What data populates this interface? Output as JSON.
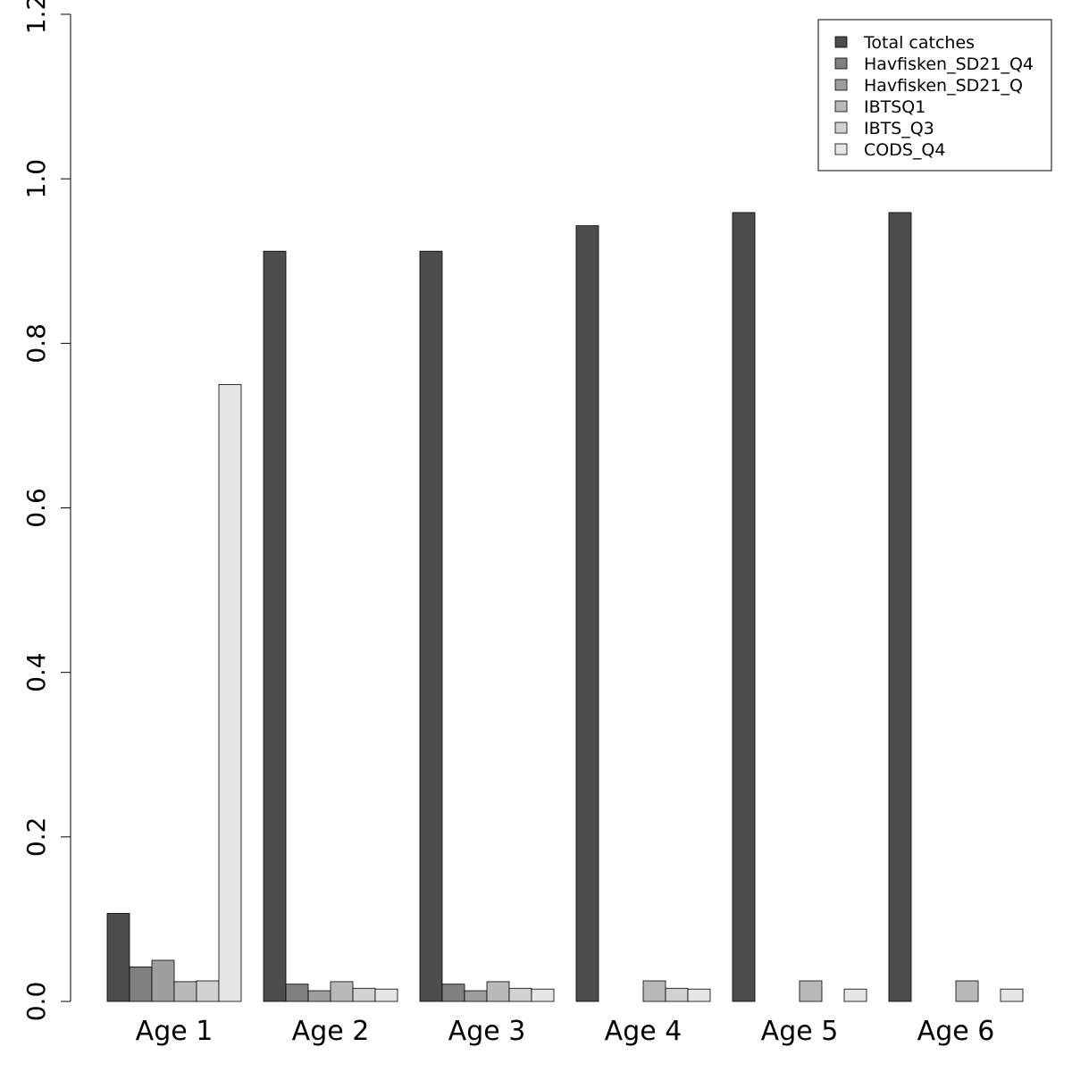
{
  "chart_data": {
    "type": "bar",
    "categories": [
      "Age 1",
      "Age 2",
      "Age 3",
      "Age 4",
      "Age 5",
      "Age 6"
    ],
    "series": [
      {
        "name": "Total catches",
        "color": "#4d4d4d",
        "values": [
          0.107,
          0.912,
          0.912,
          0.943,
          0.959,
          0.959
        ]
      },
      {
        "name": "Havfisken_SD21_Q4",
        "color": "#808080",
        "values": [
          0.042,
          0.021,
          0.021,
          0,
          0,
          0
        ]
      },
      {
        "name": "Havfisken_SD21_Q",
        "color": "#9e9e9e",
        "values": [
          0.05,
          0.013,
          0.013,
          0,
          0,
          0
        ]
      },
      {
        "name": "IBTSQ1",
        "color": "#b9b9b9",
        "values": [
          0.024,
          0.024,
          0.024,
          0.025,
          0.025,
          0.025
        ]
      },
      {
        "name": "IBTS_Q3",
        "color": "#d1d1d1",
        "values": [
          0.025,
          0.016,
          0.016,
          0.016,
          0,
          0
        ]
      },
      {
        "name": "CODS_Q4",
        "color": "#e6e6e6",
        "values": [
          0.75,
          0.015,
          0.015,
          0.015,
          0.015,
          0.015
        ]
      }
    ],
    "ylim": [
      0,
      1.2
    ],
    "yticks": [
      "0.0",
      "0.2",
      "0.4",
      "0.6",
      "0.8",
      "1.0",
      "1.2"
    ],
    "title": "",
    "xlabel": "",
    "ylabel": "",
    "legend_position": "top-right",
    "grid": false
  }
}
